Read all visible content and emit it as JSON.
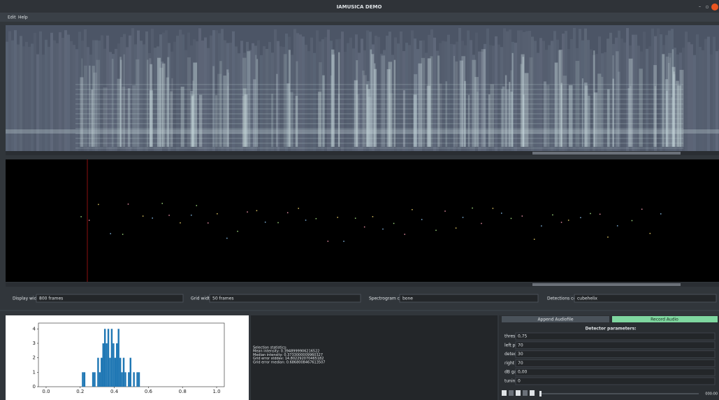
{
  "window": {
    "title": "IAMUSICA DEMO"
  },
  "menu": [
    "Edit",
    "Help"
  ],
  "controls": [
    {
      "label": "Display width",
      "value": "800 frames"
    },
    {
      "label": "Grid width",
      "value": "50 frames"
    },
    {
      "label": "Spectrogram color",
      "value": "bone"
    },
    {
      "label": "Detections color",
      "value": "cubehelix"
    }
  ],
  "stats": [
    "Selection statistics:",
    "Mean intensity: 0.3948999906216522",
    "Median intensity: 0.3733000009960327",
    "Grid error stddev: 14.802292070465182",
    "Grid error median: 0.6868008467613507"
  ],
  "buttons": [
    "Append Audiofile",
    "Record Audio"
  ],
  "parameters": {
    "title": "Detector parameters:",
    "rows": [
      {
        "label": "threshold",
        "value": "0,75"
      },
      {
        "label": "left pad",
        "value": "70"
      },
      {
        "label": "detection chunks",
        "value": "30"
      },
      {
        "label": "right pad",
        "value": "70"
      },
      {
        "label": "dB gain",
        "value": "0,00"
      },
      {
        "label": "tuning shift",
        "value": "0"
      }
    ]
  },
  "player": {
    "time": "000:00"
  },
  "chart_data": {
    "type": "histogram",
    "color": "#1f77b4",
    "bins": [
      0.21,
      0.22,
      0.23,
      0.24,
      0.25,
      0.26,
      0.27,
      0.28,
      0.29,
      0.3,
      0.31,
      0.32,
      0.33,
      0.34,
      0.35,
      0.36,
      0.37,
      0.38,
      0.39,
      0.4,
      0.41,
      0.42,
      0.43,
      0.44,
      0.45,
      0.46,
      0.47,
      0.48,
      0.49,
      0.5,
      0.51,
      0.52,
      0.53,
      0.54,
      0.55
    ],
    "counts": [
      1,
      1,
      0,
      0,
      0,
      0,
      1,
      1,
      0,
      2,
      1,
      2,
      3,
      4,
      3,
      4,
      2,
      4,
      3,
      2,
      3,
      4,
      2,
      1,
      2,
      1,
      0,
      1,
      2,
      0,
      1,
      0,
      1,
      1
    ],
    "xlim": [
      -0.045,
      1.045
    ],
    "ylim": [
      0,
      4.4
    ],
    "xticks": [
      {
        "value": 0,
        "label": "0.0"
      },
      0.2,
      0.4,
      0.6,
      0.8,
      {
        "value": 1,
        "label": "1.0"
      }
    ],
    "yticks": [
      0,
      1,
      2,
      3,
      4
    ]
  }
}
